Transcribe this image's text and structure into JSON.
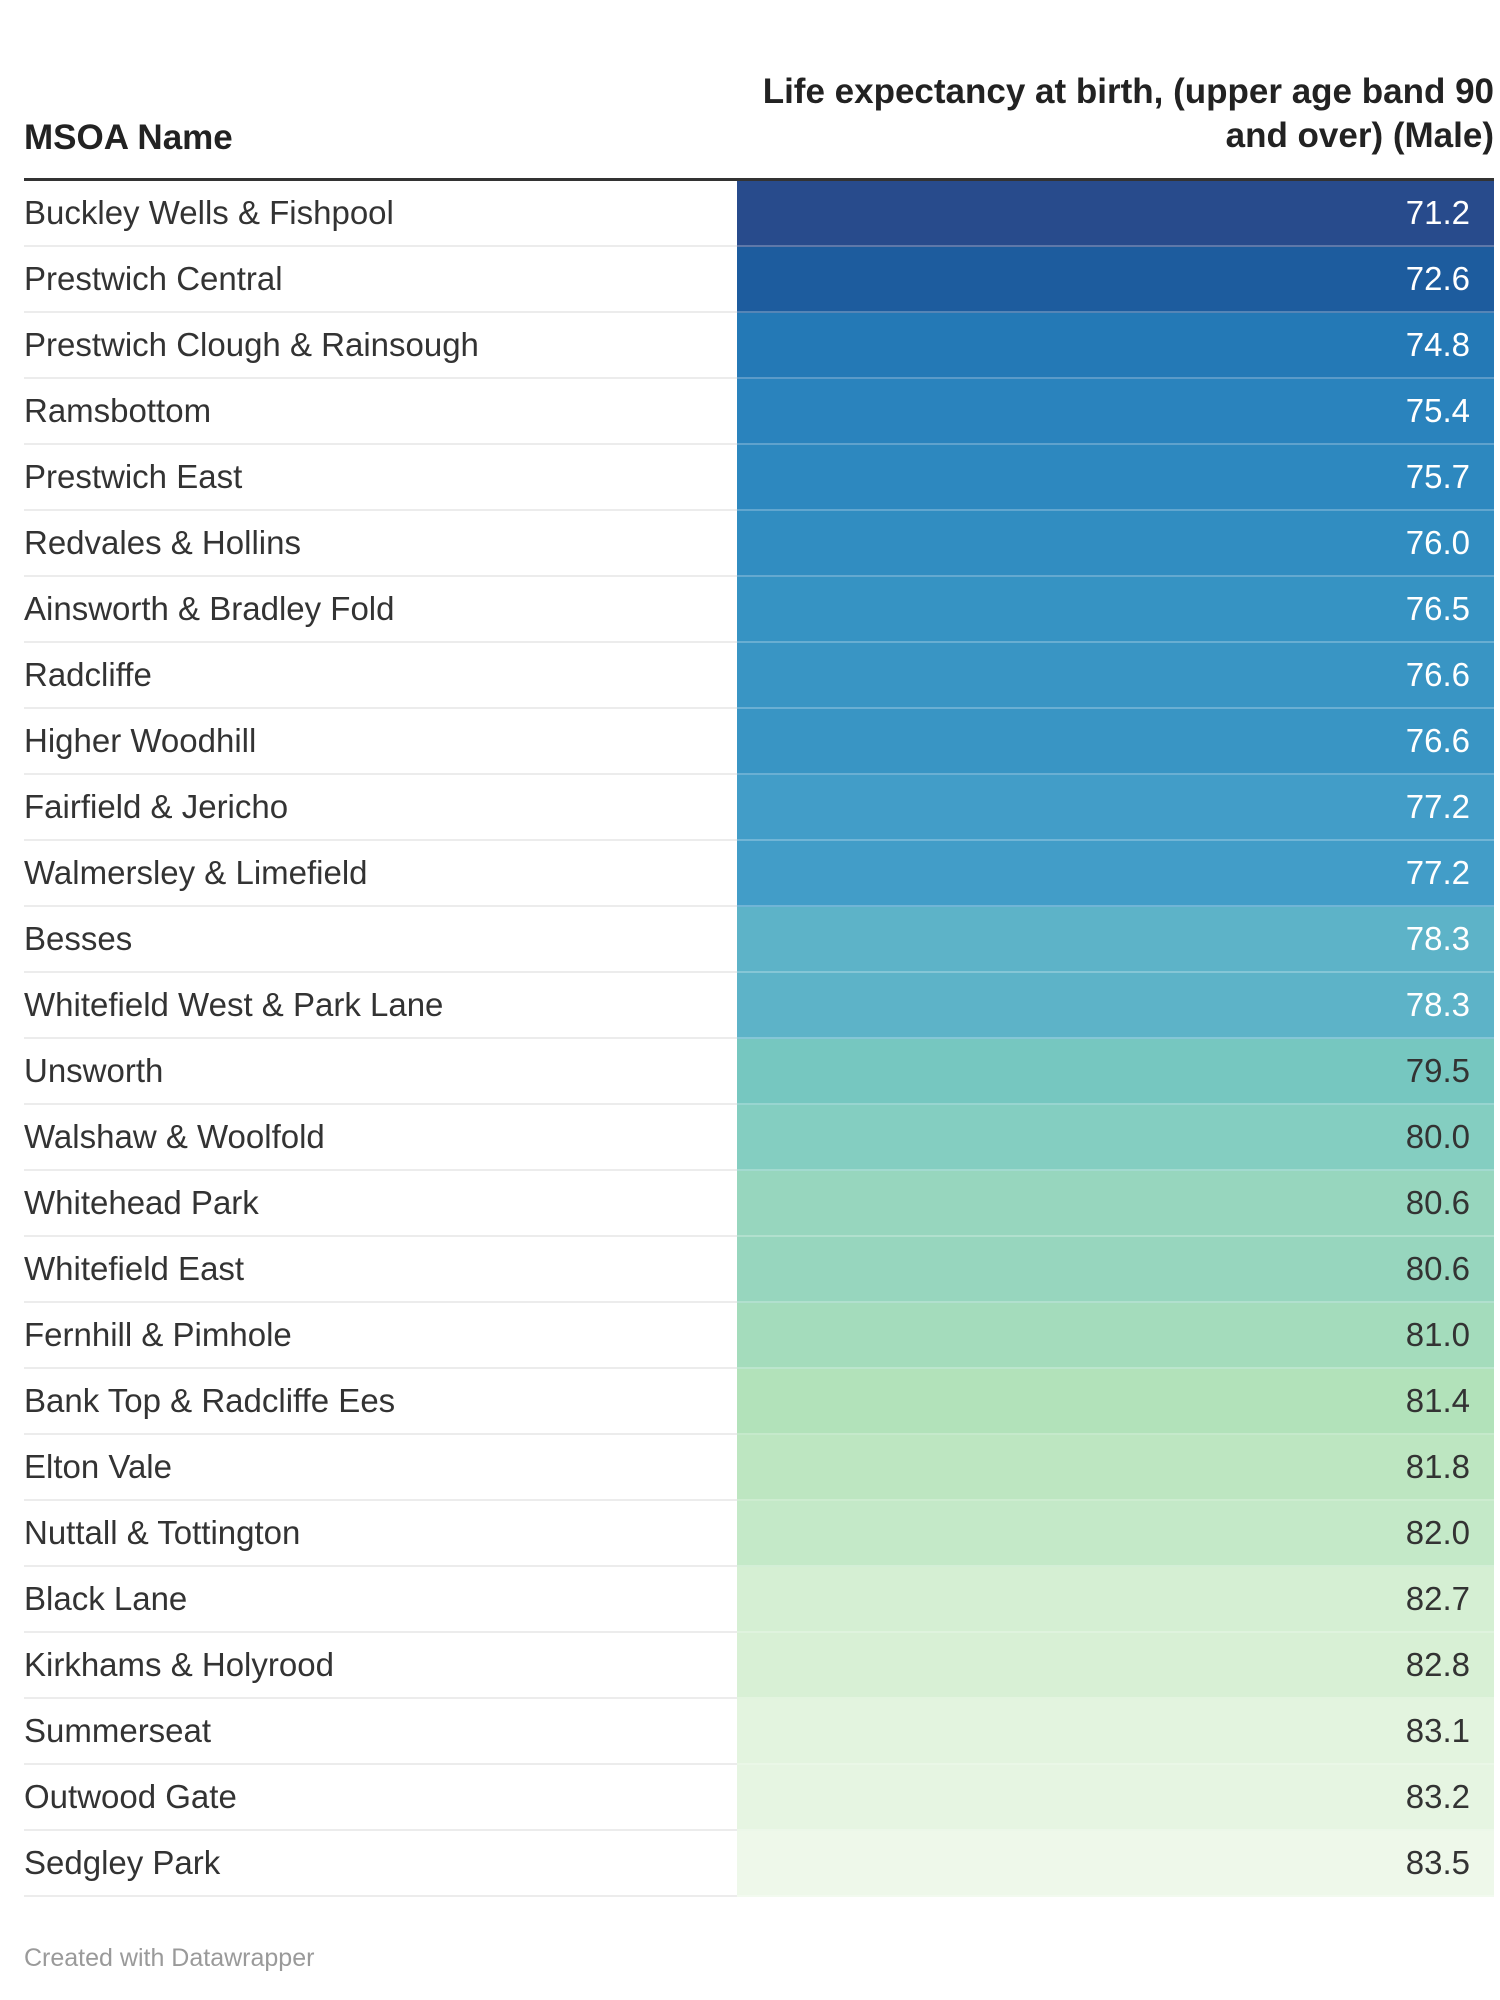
{
  "header": {
    "name_column": "MSOA Name",
    "value_column": "Life expectancy at birth, (upper age band 90 and over) (Male)"
  },
  "footer": {
    "credit": "Created with Datawrapper"
  },
  "colors": {
    "scale_low": "#2a4a8c",
    "scale_high": "#f0f8e8"
  },
  "chart_data": {
    "type": "table",
    "columns": [
      "MSOA Name",
      "Life expectancy at birth, (upper age band 90 and over) (Male)"
    ],
    "rows": [
      {
        "name": "Buckley Wells & Fishpool",
        "value": 71.2,
        "label": "71.2",
        "color": "#284b8c"
      },
      {
        "name": "Prestwich Central",
        "value": 72.6,
        "label": "72.6",
        "color": "#1d5c9e"
      },
      {
        "name": "Prestwich Clough & Rainsough",
        "value": 74.8,
        "label": "74.8",
        "color": "#2479b6"
      },
      {
        "name": "Ramsbottom",
        "value": 75.4,
        "label": "75.4",
        "color": "#2a83bd"
      },
      {
        "name": "Prestwich East",
        "value": 75.7,
        "label": "75.7",
        "color": "#2d88bf"
      },
      {
        "name": "Redvales & Hollins",
        "value": 76.0,
        "label": "76.0",
        "color": "#318dc1"
      },
      {
        "name": "Ainsworth & Bradley Fold",
        "value": 76.5,
        "label": "76.5",
        "color": "#3693c3"
      },
      {
        "name": "Radcliffe",
        "value": 76.6,
        "label": "76.6",
        "color": "#3995c4"
      },
      {
        "name": "Higher Woodhill",
        "value": 76.6,
        "label": "76.6",
        "color": "#3995c4"
      },
      {
        "name": "Fairfield & Jericho",
        "value": 77.2,
        "label": "77.2",
        "color": "#429dc8"
      },
      {
        "name": "Walmersley & Limefield",
        "value": 77.2,
        "label": "77.2",
        "color": "#429dc8"
      },
      {
        "name": "Besses",
        "value": 78.3,
        "label": "78.3",
        "color": "#5db3c8"
      },
      {
        "name": "Whitefield West & Park Lane",
        "value": 78.3,
        "label": "78.3",
        "color": "#5db3c8"
      },
      {
        "name": "Unsworth",
        "value": 79.5,
        "label": "79.5",
        "color": "#76c7c0"
      },
      {
        "name": "Walshaw & Woolfold",
        "value": 80.0,
        "label": "80.0",
        "color": "#84cec1"
      },
      {
        "name": "Whitehead Park",
        "value": 80.6,
        "label": "80.6",
        "color": "#97d6be"
      },
      {
        "name": "Whitefield East",
        "value": 80.6,
        "label": "80.6",
        "color": "#97d6be"
      },
      {
        "name": "Fernhill & Pimhole",
        "value": 81.0,
        "label": "81.0",
        "color": "#a4dcbc"
      },
      {
        "name": "Bank Top & Radcliffe Ees",
        "value": 81.4,
        "label": "81.4",
        "color": "#b2e2ba"
      },
      {
        "name": "Elton Vale",
        "value": 81.8,
        "label": "81.8",
        "color": "#bde6c1"
      },
      {
        "name": "Nuttall & Tottington",
        "value": 82.0,
        "label": "82.0",
        "color": "#c4e9c8"
      },
      {
        "name": "Black Lane",
        "value": 82.7,
        "label": "82.7",
        "color": "#d5efd3"
      },
      {
        "name": "Kirkhams & Holyrood",
        "value": 82.8,
        "label": "82.8",
        "color": "#d8f0d5"
      },
      {
        "name": "Summerseat",
        "value": 83.1,
        "label": "83.1",
        "color": "#e3f4df"
      },
      {
        "name": "Outwood Gate",
        "value": 83.2,
        "label": "83.2",
        "color": "#e6f5e2"
      },
      {
        "name": "Sedgley Park",
        "value": 83.5,
        "label": "83.5",
        "color": "#eef8ea"
      }
    ]
  }
}
